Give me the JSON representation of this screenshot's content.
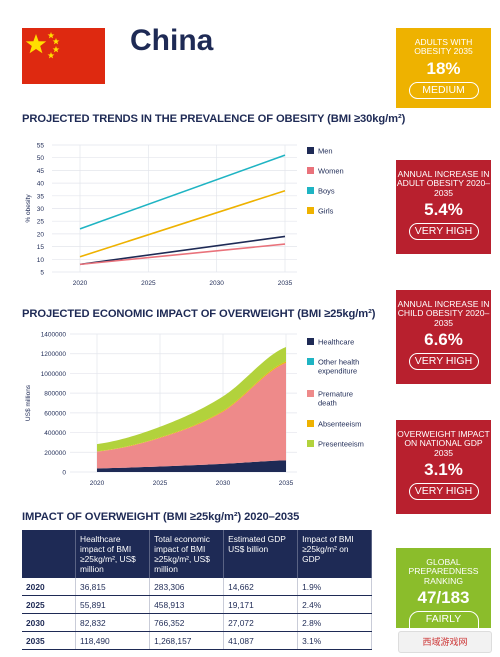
{
  "country": "China",
  "colors": {
    "navy": "#1e2a55",
    "red": "#b8202e",
    "yellow": "#eeb200",
    "green": "#8bbd2b",
    "flag": "#de2910"
  },
  "sections": {
    "obesity_title": "PROJECTED TRENDS IN THE PREVALENCE OF OBESITY (BMI ≥30kg/m²)",
    "economic_title": "PROJECTED ECONOMIC IMPACT OF OVERWEIGHT (BMI ≥25kg/m²)",
    "table_title": "IMPACT OF OVERWEIGHT (BMI ≥25kg/m²) 2020–2035"
  },
  "cards": [
    {
      "title": "ADULTS WITH OBESITY 2035",
      "value": "18%",
      "rating": "MEDIUM",
      "color": "#eeb200"
    },
    {
      "title": "ANNUAL INCREASE IN ADULT OBESITY 2020–2035",
      "value": "5.4%",
      "rating": "VERY HIGH",
      "color": "#b8202e"
    },
    {
      "title": "ANNUAL INCREASE IN CHILD OBESITY 2020–2035",
      "value": "6.6%",
      "rating": "VERY HIGH",
      "color": "#b8202e"
    },
    {
      "title": "OVERWEIGHT IMPACT ON NATIONAL GDP 2035",
      "value": "3.1%",
      "rating": "VERY HIGH",
      "color": "#b8202e"
    },
    {
      "title": "GLOBAL PREPAREDNESS RANKING",
      "value": "47/183",
      "rating": "FAIRLY GOOD",
      "color": "#8bbd2b"
    }
  ],
  "chart_data": [
    {
      "type": "line",
      "ylabel": "% obesity",
      "x": [
        2020,
        2035
      ],
      "xticks": [
        "2020",
        "2025",
        "2030",
        "2035"
      ],
      "yticks": [
        "5",
        "10",
        "15",
        "20",
        "25",
        "30",
        "35",
        "40",
        "45",
        "50",
        "55"
      ],
      "ylim": [
        5,
        55
      ],
      "grid": true,
      "legend_position": "right",
      "series": [
        {
          "name": "Men",
          "color": "#1e2a55",
          "values": [
            8,
            19
          ]
        },
        {
          "name": "Women",
          "color": "#e9727b",
          "values": [
            8,
            16
          ]
        },
        {
          "name": "Boys",
          "color": "#1fb4c3",
          "values": [
            22,
            51
          ]
        },
        {
          "name": "Girls",
          "color": "#eeb200",
          "values": [
            11,
            37
          ]
        }
      ]
    },
    {
      "type": "area",
      "ylabel": "US$ millions",
      "x": [
        2020,
        2025,
        2030,
        2035
      ],
      "xticks": [
        "2020",
        "2025",
        "2030",
        "2035"
      ],
      "yticks": [
        "0",
        "200000",
        "400000",
        "600000",
        "800000",
        "1000000",
        "1200000",
        "1400000"
      ],
      "ylim": [
        0,
        1400000
      ],
      "grid": true,
      "stacked": true,
      "legend_position": "right",
      "series": [
        {
          "name": "Healthcare",
          "color": "#1e2a55",
          "values": [
            36815,
            55891,
            82832,
            118490
          ]
        },
        {
          "name": "Other health expenditure",
          "color": "#1fb4c3",
          "values": [
            0,
            0,
            0,
            0
          ]
        },
        {
          "name": "Premature death",
          "color": "#ee8a8a",
          "values": [
            170000,
            290000,
            530000,
            990000
          ]
        },
        {
          "name": "Absenteeism",
          "color": "#eeb200",
          "values": [
            3000,
            5000,
            8000,
            12000
          ]
        },
        {
          "name": "Presenteeism",
          "color": "#b2d23c",
          "values": [
            73000,
            108000,
            146000,
            148000
          ]
        }
      ]
    },
    {
      "type": "table",
      "columns": [
        "",
        "Healthcare impact of BMI ≥25kg/m², US$ million",
        "Total economic impact of BMI ≥25kg/m², US$ million",
        "Estimated GDP US$ billion",
        "Impact of BMI ≥25kg/m² on GDP"
      ],
      "rows": [
        [
          "2020",
          "36,815",
          "283,306",
          "14,662",
          "1.9%"
        ],
        [
          "2025",
          "55,891",
          "458,913",
          "19,171",
          "2.4%"
        ],
        [
          "2030",
          "82,832",
          "766,352",
          "27,072",
          "2.8%"
        ],
        [
          "2035",
          "118,490",
          "1,268,157",
          "41,087",
          "3.1%"
        ]
      ]
    }
  ],
  "watermark": "西域游戏网"
}
